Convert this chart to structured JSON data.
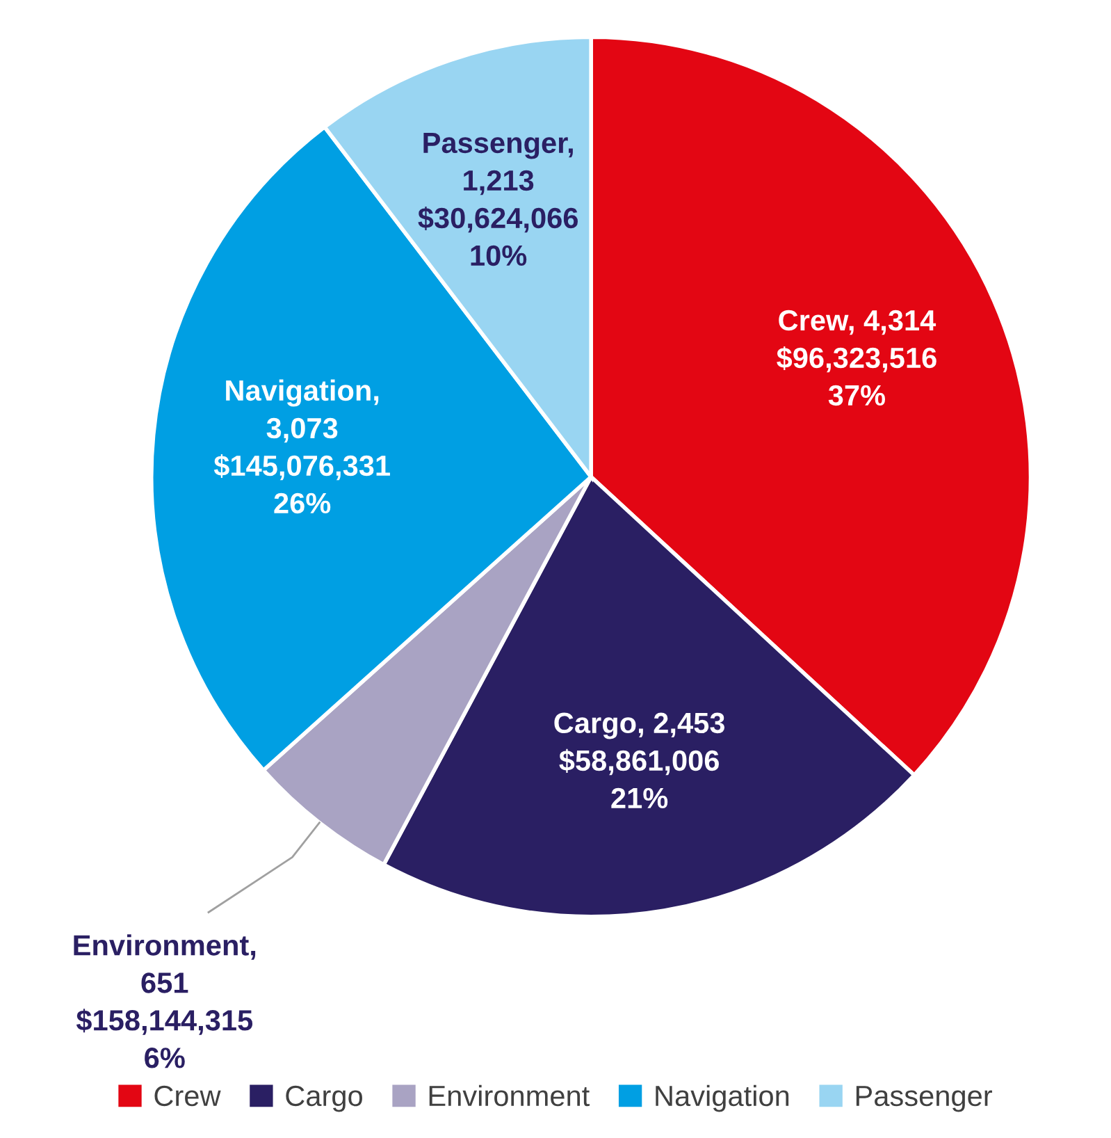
{
  "chart_data": {
    "type": "pie",
    "categories": [
      "Crew",
      "Cargo",
      "Environment",
      "Navigation",
      "Passenger"
    ],
    "values": [
      4314,
      2453,
      651,
      3073,
      1213
    ],
    "colors": [
      "#e30613",
      "#2a1f63",
      "#a9a3c3",
      "#009fe3",
      "#99d5f2"
    ],
    "value_labels": [
      "Crew, 4,314\n$96,323,516\n37%",
      "Cargo, 2,453\n$58,861,006\n21%",
      "Environment,\n651\n$158,144,315\n6%",
      "Navigation,\n3,073\n$145,076,331\n26%",
      "Passenger,\n1,213\n$30,624,066\n10%"
    ],
    "legend": "bottom"
  }
}
